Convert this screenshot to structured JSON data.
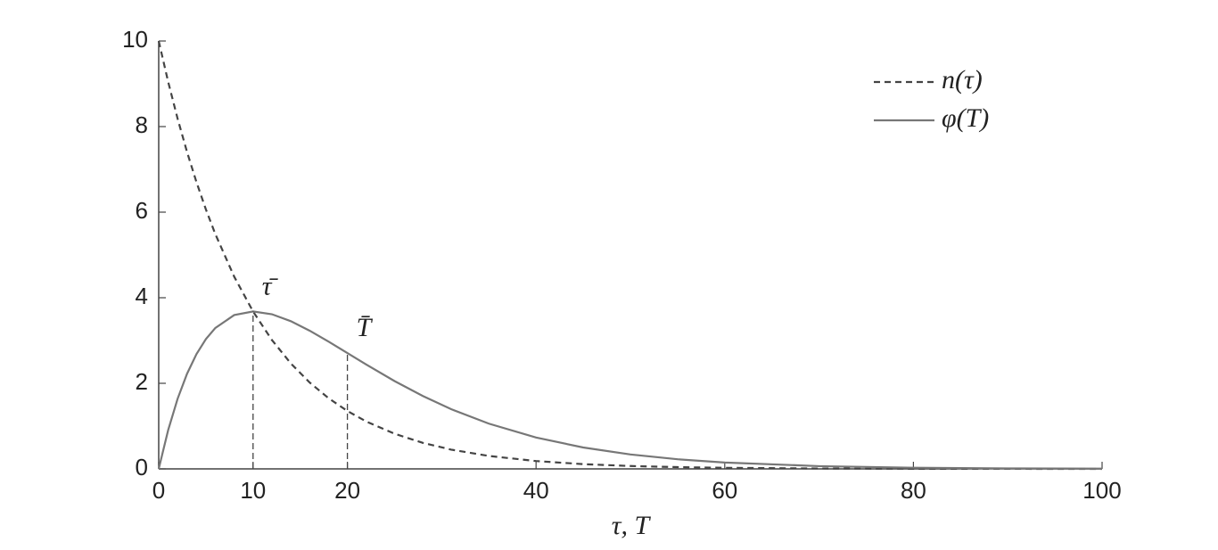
{
  "chart_data": {
    "type": "line",
    "x_label": "τ, T",
    "x": [
      0,
      1,
      2,
      3,
      4,
      5,
      6,
      8,
      10,
      12,
      14,
      16,
      18,
      20,
      22,
      25,
      28,
      31,
      35,
      40,
      45,
      50,
      55,
      60,
      70,
      80,
      90,
      100
    ],
    "series": [
      {
        "name": "n(τ)",
        "color": "#444444",
        "dash": true,
        "values": [
          10,
          9.048,
          8.187,
          7.408,
          6.703,
          6.065,
          5.488,
          4.493,
          3.679,
          3.012,
          2.466,
          2.019,
          1.653,
          1.353,
          1.108,
          0.821,
          0.608,
          0.45,
          0.302,
          0.183,
          0.111,
          0.067,
          0.041,
          0.025,
          0.009,
          0.003,
          0.001,
          0
        ]
      },
      {
        "name": "φ(T)",
        "color": "#777777",
        "dash": false,
        "values": [
          0,
          0.905,
          1.637,
          2.222,
          2.681,
          3.033,
          3.293,
          3.595,
          3.679,
          3.614,
          3.452,
          3.23,
          2.975,
          2.707,
          2.438,
          2.052,
          1.703,
          1.396,
          1.057,
          0.733,
          0.5,
          0.337,
          0.225,
          0.149,
          0.064,
          0.027,
          0.011,
          0.005
        ]
      }
    ],
    "annotations": [
      {
        "text": "τ̄",
        "x": 10,
        "y": 3.679
      },
      {
        "text": "T̄",
        "x": 20,
        "y": 2.707
      }
    ],
    "xlim": [
      0,
      100
    ],
    "xticks": [
      0,
      10,
      20,
      40,
      60,
      80,
      100
    ],
    "ylim": [
      0,
      10
    ],
    "yticks": [
      0,
      2,
      4,
      6,
      8,
      10
    ],
    "grid": false,
    "legend": "upper right"
  }
}
